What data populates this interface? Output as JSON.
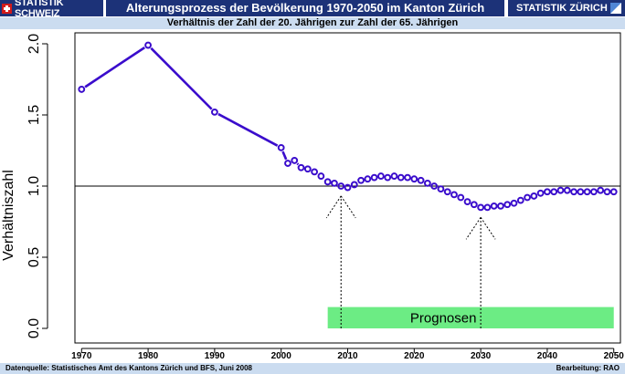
{
  "header": {
    "brand_left": "STATISTIK SCHWEIZ",
    "title": "Alterungsprozess der Bevölkerung 1970-2050 im Kanton Zürich",
    "brand_right": "STATISTIK ZÜRICH"
  },
  "subtitle": "Verhältnis der Zahl der 20. Jährigen zur Zahl der 65. Jährigen",
  "footer": {
    "source": "Datenquelle: Statistisches Amt des Kantons Zürich und BFS, Juni  2008",
    "credit": "Bearbeitung: RAO"
  },
  "colors": {
    "header_bg": "#1c3278",
    "subtitle_bg": "#cbdcf0",
    "series": "#3a0ccc",
    "prognosen_box": "#6cec84"
  },
  "chart_data": {
    "type": "line",
    "title": "Verhältnis der Zahl der 20. Jährigen zur Zahl der 65. Jährigen",
    "xlabel": "",
    "ylabel": "Verhältniszahl",
    "xlim": [
      1969,
      2051
    ],
    "ylim": [
      0.0,
      2.0
    ],
    "x_ticks": [
      1970,
      1980,
      1990,
      2000,
      2010,
      2020,
      2030,
      2040,
      2050
    ],
    "y_ticks": [
      0.0,
      0.5,
      1.0,
      1.5,
      2.0
    ],
    "y_tick_labels": [
      "0.0",
      "0.5",
      "1.0",
      "1.5",
      "2.0"
    ],
    "reference_line": 1.0,
    "grid": false,
    "series": [
      {
        "x": [
          1970,
          1980,
          1990,
          2000,
          2001,
          2002,
          2003,
          2004,
          2005,
          2006,
          2007,
          2008,
          2009,
          2010,
          2011,
          2012,
          2013,
          2014,
          2015,
          2016,
          2017,
          2018,
          2019,
          2020,
          2021,
          2022,
          2023,
          2024,
          2025,
          2026,
          2027,
          2028,
          2029,
          2030,
          2031,
          2032,
          2033,
          2034,
          2035,
          2036,
          2037,
          2038,
          2039,
          2040,
          2041,
          2042,
          2043,
          2044,
          2045,
          2046,
          2047,
          2048,
          2049,
          2050
        ],
        "values": [
          1.68,
          1.99,
          1.52,
          1.27,
          1.16,
          1.18,
          1.13,
          1.12,
          1.1,
          1.07,
          1.03,
          1.02,
          1.0,
          0.99,
          1.01,
          1.04,
          1.05,
          1.06,
          1.07,
          1.06,
          1.07,
          1.06,
          1.06,
          1.05,
          1.04,
          1.02,
          1.0,
          0.98,
          0.96,
          0.94,
          0.92,
          0.89,
          0.87,
          0.85,
          0.85,
          0.86,
          0.86,
          0.87,
          0.88,
          0.9,
          0.92,
          0.93,
          0.95,
          0.96,
          0.96,
          0.97,
          0.97,
          0.96,
          0.96,
          0.96,
          0.96,
          0.97,
          0.96,
          0.96
        ]
      }
    ],
    "annotations": [
      {
        "label": "Prognosen",
        "x_range": [
          2007,
          2050
        ],
        "y_range": [
          0.0,
          0.15
        ]
      },
      {
        "type": "arrow",
        "x": 2009,
        "y_from": 0.0,
        "y_to": 0.93
      },
      {
        "type": "arrow",
        "x": 2030,
        "y_from": 0.0,
        "y_to": 0.78
      }
    ]
  }
}
